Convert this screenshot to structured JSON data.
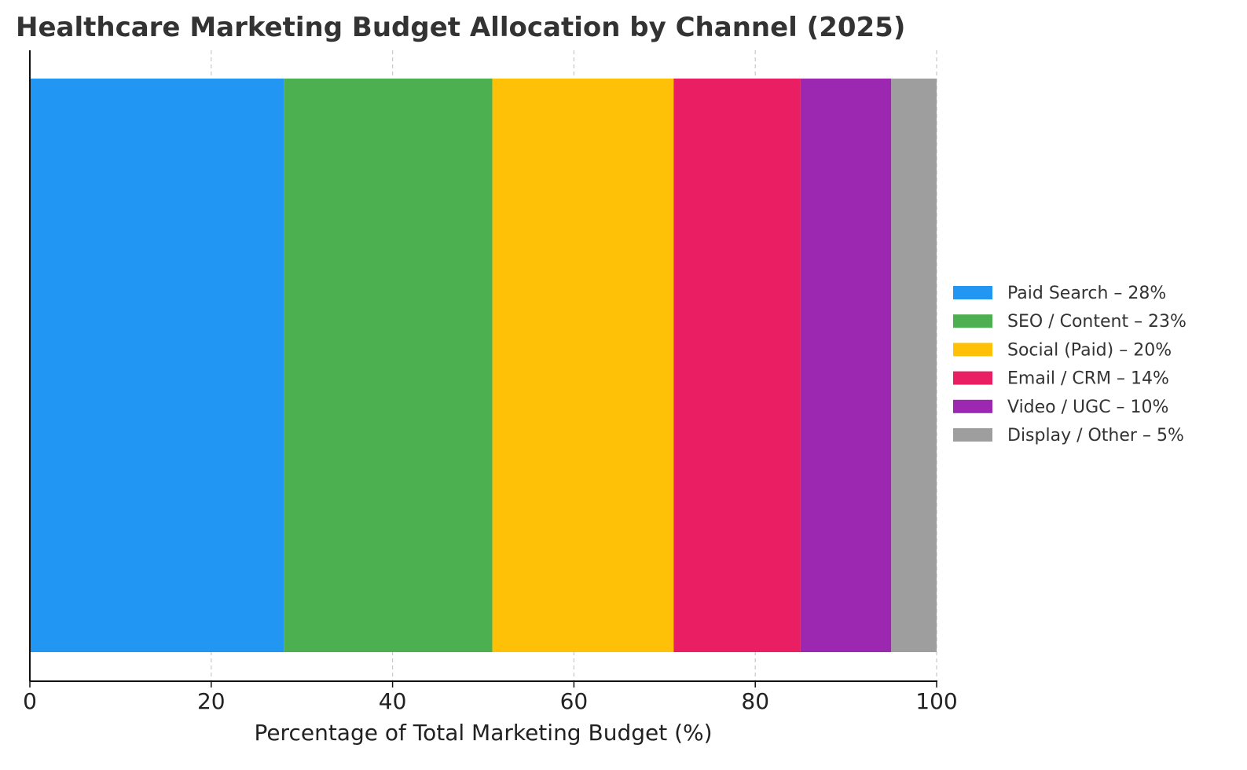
{
  "chart_data": {
    "type": "bar",
    "orientation": "horizontal",
    "stacked": true,
    "title": "Healthcare Marketing Budget Allocation by Channel (2025)",
    "xlabel": "Percentage of Total Marketing Budget (%)",
    "ylabel": "",
    "xlim": [
      0,
      100
    ],
    "x_ticks": [
      "0",
      "20",
      "40",
      "60",
      "80",
      "100"
    ],
    "grid": "vertical dashed",
    "legend_position": "center-right",
    "series": [
      {
        "name": "Paid Search – 28%",
        "value": 28,
        "color": "#2196F3"
      },
      {
        "name": "SEO / Content – 23%",
        "value": 23,
        "color": "#4CAF50"
      },
      {
        "name": "Social (Paid) – 20%",
        "value": 20,
        "color": "#FFC107"
      },
      {
        "name": "Email / CRM – 14%",
        "value": 14,
        "color": "#E91E63"
      },
      {
        "name": "Video / UGC – 10%",
        "value": 10,
        "color": "#9C27B0"
      },
      {
        "name": "Display / Other – 5%",
        "value": 5,
        "color": "#9E9E9E"
      }
    ]
  }
}
